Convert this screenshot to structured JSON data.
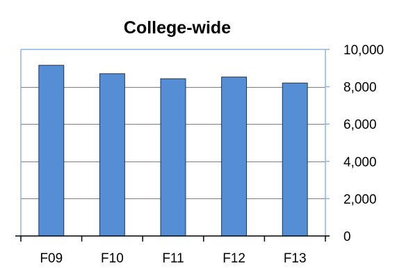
{
  "chart_data": {
    "type": "bar",
    "title": "College-wide",
    "categories": [
      "F09",
      "F10",
      "F11",
      "F12",
      "F13"
    ],
    "values": [
      9150,
      8700,
      8430,
      8520,
      8200
    ],
    "ylim": [
      0,
      10000
    ],
    "yticks": [
      0,
      2000,
      4000,
      6000,
      8000,
      10000
    ],
    "ytick_labels": [
      "0",
      "2,000",
      "4,000",
      "6,000",
      "8,000",
      "10,000"
    ],
    "y_axis_position": "right",
    "grid": true,
    "legend": "none",
    "bar_color": "#558ED5",
    "bar_edge_color": "#17375E",
    "axis_color": "#8EB4E3"
  }
}
